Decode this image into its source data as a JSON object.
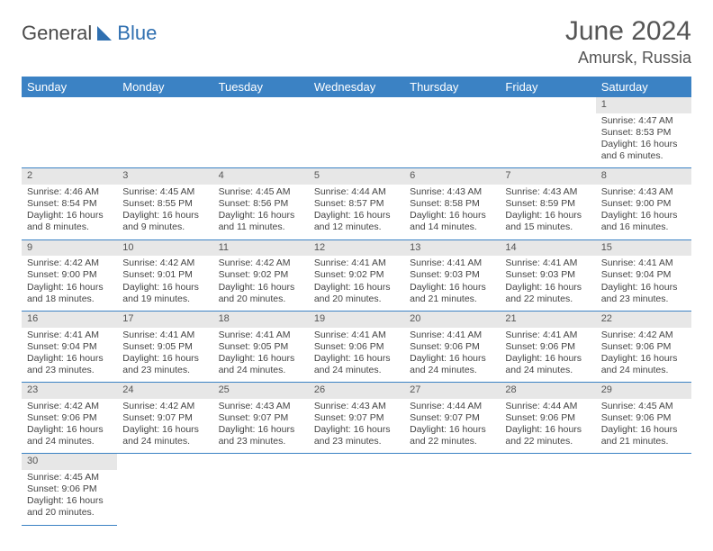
{
  "logo": {
    "part1": "General",
    "part2": "Blue"
  },
  "title": "June 2024",
  "location": "Amursk, Russia",
  "colors": {
    "header_bg": "#3b82c4",
    "header_text": "#ffffff",
    "daynum_bg": "#e7e7e7",
    "cell_border": "#3b82c4",
    "text": "#444444",
    "logo_gray": "#4a4a4a",
    "logo_blue": "#2f6fb0"
  },
  "day_headers": [
    "Sunday",
    "Monday",
    "Tuesday",
    "Wednesday",
    "Thursday",
    "Friday",
    "Saturday"
  ],
  "weeks": [
    [
      null,
      null,
      null,
      null,
      null,
      null,
      {
        "n": "1",
        "sunrise": "Sunrise: 4:47 AM",
        "sunset": "Sunset: 8:53 PM",
        "day1": "Daylight: 16 hours",
        "day2": "and 6 minutes."
      }
    ],
    [
      {
        "n": "2",
        "sunrise": "Sunrise: 4:46 AM",
        "sunset": "Sunset: 8:54 PM",
        "day1": "Daylight: 16 hours",
        "day2": "and 8 minutes."
      },
      {
        "n": "3",
        "sunrise": "Sunrise: 4:45 AM",
        "sunset": "Sunset: 8:55 PM",
        "day1": "Daylight: 16 hours",
        "day2": "and 9 minutes."
      },
      {
        "n": "4",
        "sunrise": "Sunrise: 4:45 AM",
        "sunset": "Sunset: 8:56 PM",
        "day1": "Daylight: 16 hours",
        "day2": "and 11 minutes."
      },
      {
        "n": "5",
        "sunrise": "Sunrise: 4:44 AM",
        "sunset": "Sunset: 8:57 PM",
        "day1": "Daylight: 16 hours",
        "day2": "and 12 minutes."
      },
      {
        "n": "6",
        "sunrise": "Sunrise: 4:43 AM",
        "sunset": "Sunset: 8:58 PM",
        "day1": "Daylight: 16 hours",
        "day2": "and 14 minutes."
      },
      {
        "n": "7",
        "sunrise": "Sunrise: 4:43 AM",
        "sunset": "Sunset: 8:59 PM",
        "day1": "Daylight: 16 hours",
        "day2": "and 15 minutes."
      },
      {
        "n": "8",
        "sunrise": "Sunrise: 4:43 AM",
        "sunset": "Sunset: 9:00 PM",
        "day1": "Daylight: 16 hours",
        "day2": "and 16 minutes."
      }
    ],
    [
      {
        "n": "9",
        "sunrise": "Sunrise: 4:42 AM",
        "sunset": "Sunset: 9:00 PM",
        "day1": "Daylight: 16 hours",
        "day2": "and 18 minutes."
      },
      {
        "n": "10",
        "sunrise": "Sunrise: 4:42 AM",
        "sunset": "Sunset: 9:01 PM",
        "day1": "Daylight: 16 hours",
        "day2": "and 19 minutes."
      },
      {
        "n": "11",
        "sunrise": "Sunrise: 4:42 AM",
        "sunset": "Sunset: 9:02 PM",
        "day1": "Daylight: 16 hours",
        "day2": "and 20 minutes."
      },
      {
        "n": "12",
        "sunrise": "Sunrise: 4:41 AM",
        "sunset": "Sunset: 9:02 PM",
        "day1": "Daylight: 16 hours",
        "day2": "and 20 minutes."
      },
      {
        "n": "13",
        "sunrise": "Sunrise: 4:41 AM",
        "sunset": "Sunset: 9:03 PM",
        "day1": "Daylight: 16 hours",
        "day2": "and 21 minutes."
      },
      {
        "n": "14",
        "sunrise": "Sunrise: 4:41 AM",
        "sunset": "Sunset: 9:03 PM",
        "day1": "Daylight: 16 hours",
        "day2": "and 22 minutes."
      },
      {
        "n": "15",
        "sunrise": "Sunrise: 4:41 AM",
        "sunset": "Sunset: 9:04 PM",
        "day1": "Daylight: 16 hours",
        "day2": "and 23 minutes."
      }
    ],
    [
      {
        "n": "16",
        "sunrise": "Sunrise: 4:41 AM",
        "sunset": "Sunset: 9:04 PM",
        "day1": "Daylight: 16 hours",
        "day2": "and 23 minutes."
      },
      {
        "n": "17",
        "sunrise": "Sunrise: 4:41 AM",
        "sunset": "Sunset: 9:05 PM",
        "day1": "Daylight: 16 hours",
        "day2": "and 23 minutes."
      },
      {
        "n": "18",
        "sunrise": "Sunrise: 4:41 AM",
        "sunset": "Sunset: 9:05 PM",
        "day1": "Daylight: 16 hours",
        "day2": "and 24 minutes."
      },
      {
        "n": "19",
        "sunrise": "Sunrise: 4:41 AM",
        "sunset": "Sunset: 9:06 PM",
        "day1": "Daylight: 16 hours",
        "day2": "and 24 minutes."
      },
      {
        "n": "20",
        "sunrise": "Sunrise: 4:41 AM",
        "sunset": "Sunset: 9:06 PM",
        "day1": "Daylight: 16 hours",
        "day2": "and 24 minutes."
      },
      {
        "n": "21",
        "sunrise": "Sunrise: 4:41 AM",
        "sunset": "Sunset: 9:06 PM",
        "day1": "Daylight: 16 hours",
        "day2": "and 24 minutes."
      },
      {
        "n": "22",
        "sunrise": "Sunrise: 4:42 AM",
        "sunset": "Sunset: 9:06 PM",
        "day1": "Daylight: 16 hours",
        "day2": "and 24 minutes."
      }
    ],
    [
      {
        "n": "23",
        "sunrise": "Sunrise: 4:42 AM",
        "sunset": "Sunset: 9:06 PM",
        "day1": "Daylight: 16 hours",
        "day2": "and 24 minutes."
      },
      {
        "n": "24",
        "sunrise": "Sunrise: 4:42 AM",
        "sunset": "Sunset: 9:07 PM",
        "day1": "Daylight: 16 hours",
        "day2": "and 24 minutes."
      },
      {
        "n": "25",
        "sunrise": "Sunrise: 4:43 AM",
        "sunset": "Sunset: 9:07 PM",
        "day1": "Daylight: 16 hours",
        "day2": "and 23 minutes."
      },
      {
        "n": "26",
        "sunrise": "Sunrise: 4:43 AM",
        "sunset": "Sunset: 9:07 PM",
        "day1": "Daylight: 16 hours",
        "day2": "and 23 minutes."
      },
      {
        "n": "27",
        "sunrise": "Sunrise: 4:44 AM",
        "sunset": "Sunset: 9:07 PM",
        "day1": "Daylight: 16 hours",
        "day2": "and 22 minutes."
      },
      {
        "n": "28",
        "sunrise": "Sunrise: 4:44 AM",
        "sunset": "Sunset: 9:06 PM",
        "day1": "Daylight: 16 hours",
        "day2": "and 22 minutes."
      },
      {
        "n": "29",
        "sunrise": "Sunrise: 4:45 AM",
        "sunset": "Sunset: 9:06 PM",
        "day1": "Daylight: 16 hours",
        "day2": "and 21 minutes."
      }
    ],
    [
      {
        "n": "30",
        "sunrise": "Sunrise: 4:45 AM",
        "sunset": "Sunset: 9:06 PM",
        "day1": "Daylight: 16 hours",
        "day2": "and 20 minutes."
      },
      null,
      null,
      null,
      null,
      null,
      null
    ]
  ]
}
